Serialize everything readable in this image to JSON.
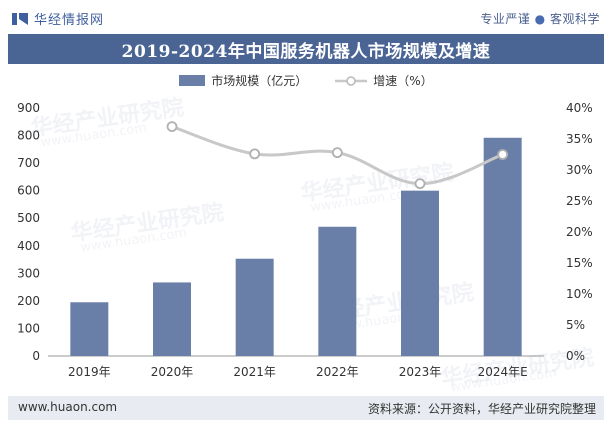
{
  "header": {
    "brand": "华经情报网",
    "slogan_left": "专业严谨",
    "slogan_sep": "●",
    "slogan_right": "客观科学"
  },
  "title": "2019-2024年中国服务机器人市场规模及增速",
  "legend": {
    "bar_label": "市场规模（亿元）",
    "line_label": "增速（%）"
  },
  "footer": {
    "site": "www.huaon.com",
    "source": "资料来源：公开资料，华经产业研究院整理"
  },
  "watermark": {
    "text": "华经产业研究院",
    "url": "www.huaon.com"
  },
  "colors": {
    "bar": "#6a7fa8",
    "line": "#c8c8c8",
    "title_bg": "#4a6494",
    "brand": "#3f5f9e"
  },
  "chart_data": {
    "type": "bar",
    "categories": [
      "2019年",
      "2020年",
      "2021年",
      "2022年",
      "2023年",
      "2024年E"
    ],
    "series": [
      {
        "name": "市场规模（亿元）",
        "type": "bar",
        "axis": "left",
        "values": [
          195,
          267,
          353,
          469,
          600,
          792
        ]
      },
      {
        "name": "增速（%）",
        "type": "line",
        "axis": "right",
        "values": [
          null,
          37.0,
          32.6,
          32.8,
          27.8,
          32.5
        ]
      }
    ],
    "y_left": {
      "min": 0,
      "max": 900,
      "step": 100,
      "ticks": [
        "0",
        "100",
        "200",
        "300",
        "400",
        "500",
        "600",
        "700",
        "800",
        "900"
      ]
    },
    "y_right": {
      "min": 0,
      "max": 40,
      "step": 5,
      "ticks": [
        "0%",
        "5%",
        "10%",
        "15%",
        "20%",
        "25%",
        "30%",
        "35%",
        "40%"
      ]
    },
    "grid": false,
    "legend_position": "top-center"
  }
}
